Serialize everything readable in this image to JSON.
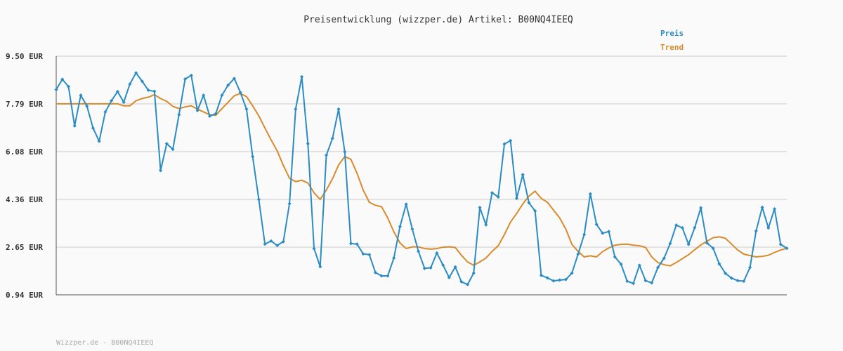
{
  "chart_data": {
    "type": "line",
    "title": "Preisentwicklung (wizzper.de) Artikel: B00NQ4IEEQ",
    "xlabel": "",
    "ylabel": "",
    "ylim": [
      0.94,
      9.5
    ],
    "y_ticks": [
      0.94,
      2.65,
      4.36,
      6.08,
      7.79,
      9.5
    ],
    "y_tick_labels": [
      "0.94 EUR",
      "2.65 EUR",
      "4.36 EUR",
      "6.08 EUR",
      "7.79 EUR",
      "9.50 EUR"
    ],
    "grid": true,
    "legend_position": "top-right",
    "series": [
      {
        "name": "Preis",
        "color": "#2b8cc4",
        "marker": "diamond",
        "values": [
          8.3,
          8.67,
          8.41,
          7.0,
          8.1,
          7.71,
          6.92,
          6.45,
          7.5,
          7.9,
          8.23,
          7.85,
          8.5,
          8.9,
          8.6,
          8.28,
          8.24,
          5.4,
          6.36,
          6.16,
          7.4,
          8.68,
          8.81,
          7.55,
          8.1,
          7.35,
          7.44,
          8.1,
          8.46,
          8.7,
          8.2,
          7.6,
          5.9,
          4.36,
          2.76,
          2.87,
          2.71,
          2.85,
          4.21,
          7.6,
          8.76,
          6.36,
          2.6,
          1.95,
          5.95,
          6.55,
          7.6,
          6.07,
          2.78,
          2.76,
          2.41,
          2.38,
          1.74,
          1.62,
          1.62,
          2.26,
          3.39,
          4.19,
          3.3,
          2.5,
          1.89,
          1.91,
          2.44,
          2.01,
          1.56,
          1.94,
          1.41,
          1.31,
          1.72,
          4.07,
          3.45,
          4.6,
          4.45,
          6.35,
          6.47,
          4.4,
          5.25,
          4.24,
          3.95,
          1.64,
          1.55,
          1.44,
          1.47,
          1.49,
          1.72,
          2.4,
          3.1,
          4.56,
          3.47,
          3.15,
          3.21,
          2.3,
          2.04,
          1.43,
          1.35,
          2.0,
          1.45,
          1.37,
          1.92,
          2.25,
          2.78,
          3.44,
          3.34,
          2.75,
          3.35,
          4.06,
          2.8,
          2.61,
          2.05,
          1.71,
          1.54,
          1.45,
          1.43,
          1.92,
          3.23,
          4.08,
          3.34,
          4.02,
          2.75,
          2.61
        ]
      },
      {
        "name": "Trend",
        "color": "#d98b2b",
        "marker": "none",
        "values": [
          7.79,
          7.79,
          7.79,
          7.79,
          7.79,
          7.79,
          7.79,
          7.79,
          7.79,
          7.79,
          7.79,
          7.72,
          7.72,
          7.9,
          7.98,
          8.03,
          8.12,
          7.98,
          7.88,
          7.7,
          7.62,
          7.68,
          7.72,
          7.6,
          7.5,
          7.4,
          7.38,
          7.62,
          7.85,
          8.08,
          8.16,
          8.05,
          7.72,
          7.36,
          6.92,
          6.5,
          6.1,
          5.58,
          5.12,
          5.0,
          5.05,
          4.95,
          4.6,
          4.36,
          4.7,
          5.1,
          5.6,
          5.9,
          5.8,
          5.3,
          4.7,
          4.26,
          4.15,
          4.1,
          3.7,
          3.2,
          2.8,
          2.6,
          2.66,
          2.66,
          2.6,
          2.58,
          2.6,
          2.65,
          2.66,
          2.64,
          2.36,
          2.12,
          2.0,
          2.12,
          2.26,
          2.5,
          2.7,
          3.1,
          3.55,
          3.86,
          4.2,
          4.48,
          4.66,
          4.4,
          4.26,
          3.98,
          3.7,
          3.3,
          2.75,
          2.5,
          2.3,
          2.34,
          2.3,
          2.49,
          2.62,
          2.72,
          2.75,
          2.76,
          2.72,
          2.7,
          2.64,
          2.3,
          2.1,
          2.02,
          1.98,
          2.1,
          2.24,
          2.38,
          2.56,
          2.73,
          2.86,
          2.99,
          3.02,
          2.97,
          2.76,
          2.55,
          2.4,
          2.35,
          2.3,
          2.32,
          2.36,
          2.46,
          2.55,
          2.61
        ]
      }
    ]
  },
  "footer": "Wizzper.de - B00NQ4IEEQ"
}
